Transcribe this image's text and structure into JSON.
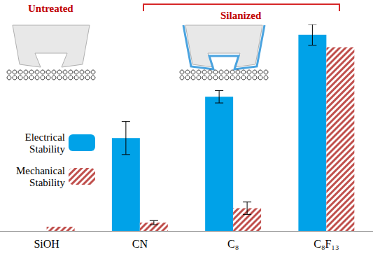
{
  "chart_data": {
    "type": "bar",
    "categories": [
      "SiOH",
      "CN",
      "C₈",
      "C₈F₁₃"
    ],
    "series": [
      {
        "name": "Electrical Stability",
        "color": "#00a2e8",
        "values": [
          0,
          45,
          65,
          95
        ],
        "errors": [
          null,
          8,
          3,
          5
        ]
      },
      {
        "name": "Mechanical Stability",
        "color": "#c0504d",
        "values": [
          2,
          4,
          11,
          89
        ],
        "errors": [
          null,
          1,
          3,
          null
        ],
        "marker": "hatch"
      }
    ],
    "annotations": [
      "Untreated",
      "Silanized"
    ],
    "ylim": [
      0,
      100
    ],
    "tick_labels": "x",
    "grid": false,
    "legend": "left"
  }
}
